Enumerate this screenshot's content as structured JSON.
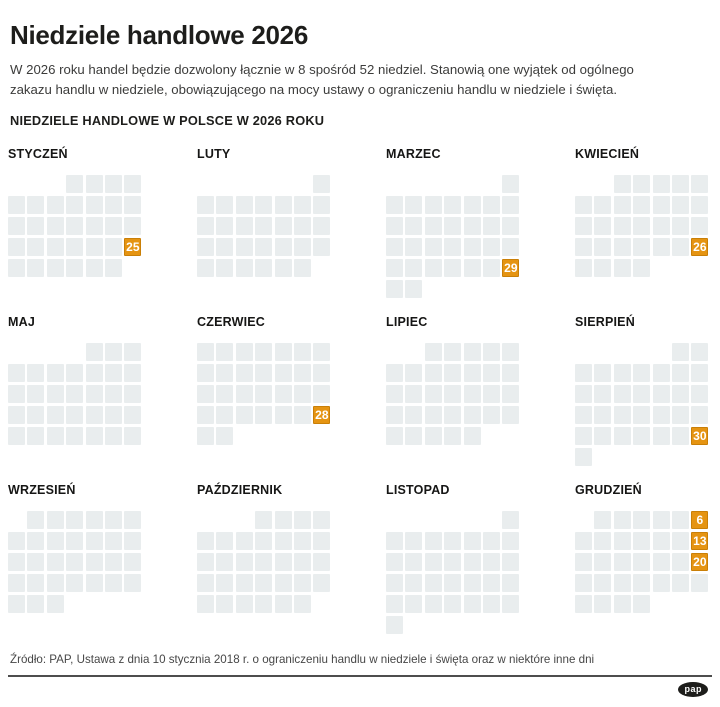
{
  "header": {
    "title": "Niedziele handlowe 2026",
    "intro": "W 2026 roku handel będzie dozwolony łącznie w 8 spośród 52 niedziel. Stanowią one wyjątek od ogólnego zakazu handlu w niedziele, obowiązującego na mocy ustawy o ograniczeniu handlu w niedziele i święta.",
    "section_title": "NIEDZIELE HANDLOWE W POLSCE W 2026 ROKU"
  },
  "colors": {
    "highlight": "#e59412",
    "highlight_border": "#c97f07",
    "day": "#e9edee",
    "text": "#1d1d1b"
  },
  "months": [
    {
      "id": "styczen",
      "name": "STYCZEŃ",
      "rows": [
        [
          "",
          "",
          "",
          ".",
          ".",
          ".",
          "."
        ],
        [
          ".",
          ".",
          ".",
          ".",
          ".",
          ".",
          "."
        ],
        [
          ".",
          ".",
          ".",
          ".",
          ".",
          ".",
          "."
        ],
        [
          ".",
          ".",
          ".",
          ".",
          ".",
          ".",
          "25"
        ],
        [
          ".",
          ".",
          ".",
          ".",
          ".",
          ".",
          ""
        ]
      ]
    },
    {
      "id": "luty",
      "name": "LUTY",
      "rows": [
        [
          "",
          "",
          "",
          "",
          "",
          "",
          "."
        ],
        [
          ".",
          ".",
          ".",
          ".",
          ".",
          ".",
          "."
        ],
        [
          ".",
          ".",
          ".",
          ".",
          ".",
          ".",
          "."
        ],
        [
          ".",
          ".",
          ".",
          ".",
          ".",
          ".",
          "."
        ],
        [
          ".",
          ".",
          ".",
          ".",
          ".",
          ".",
          ""
        ]
      ]
    },
    {
      "id": "marzec",
      "name": "MARZEC",
      "rows": [
        [
          "",
          "",
          "",
          "",
          "",
          "",
          "."
        ],
        [
          ".",
          ".",
          ".",
          ".",
          ".",
          ".",
          "."
        ],
        [
          ".",
          ".",
          ".",
          ".",
          ".",
          ".",
          "."
        ],
        [
          ".",
          ".",
          ".",
          ".",
          ".",
          ".",
          "."
        ],
        [
          ".",
          ".",
          ".",
          ".",
          ".",
          ".",
          "29"
        ],
        [
          ".",
          ".",
          "",
          "",
          "",
          "",
          ""
        ]
      ]
    },
    {
      "id": "kwiecien",
      "name": "KWIECIEŃ",
      "rows": [
        [
          "",
          "",
          ".",
          ".",
          ".",
          ".",
          "."
        ],
        [
          ".",
          ".",
          ".",
          ".",
          ".",
          ".",
          "."
        ],
        [
          ".",
          ".",
          ".",
          ".",
          ".",
          ".",
          "."
        ],
        [
          ".",
          ".",
          ".",
          ".",
          ".",
          ".",
          "26"
        ],
        [
          ".",
          ".",
          ".",
          ".",
          "",
          "",
          ""
        ]
      ]
    },
    {
      "id": "maj",
      "name": "MAJ",
      "rows": [
        [
          "",
          "",
          "",
          "",
          ".",
          ".",
          "."
        ],
        [
          ".",
          ".",
          ".",
          ".",
          ".",
          ".",
          "."
        ],
        [
          ".",
          ".",
          ".",
          ".",
          ".",
          ".",
          "."
        ],
        [
          ".",
          ".",
          ".",
          ".",
          ".",
          ".",
          "."
        ],
        [
          ".",
          ".",
          ".",
          ".",
          ".",
          ".",
          "."
        ]
      ]
    },
    {
      "id": "czerwiec",
      "name": "CZERWIEC",
      "rows": [
        [
          ".",
          ".",
          ".",
          ".",
          ".",
          ".",
          "."
        ],
        [
          ".",
          ".",
          ".",
          ".",
          ".",
          ".",
          "."
        ],
        [
          ".",
          ".",
          ".",
          ".",
          ".",
          ".",
          "."
        ],
        [
          ".",
          ".",
          ".",
          ".",
          ".",
          ".",
          "28"
        ],
        [
          ".",
          ".",
          "",
          "",
          "",
          "",
          ""
        ]
      ]
    },
    {
      "id": "lipiec",
      "name": "LIPIEC",
      "rows": [
        [
          "",
          "",
          ".",
          ".",
          ".",
          ".",
          "."
        ],
        [
          ".",
          ".",
          ".",
          ".",
          ".",
          ".",
          "."
        ],
        [
          ".",
          ".",
          ".",
          ".",
          ".",
          ".",
          "."
        ],
        [
          ".",
          ".",
          ".",
          ".",
          ".",
          ".",
          "."
        ],
        [
          ".",
          ".",
          ".",
          ".",
          ".",
          "",
          ""
        ]
      ]
    },
    {
      "id": "sierpien",
      "name": "SIERPIEŃ",
      "rows": [
        [
          "",
          "",
          "",
          "",
          "",
          ".",
          "."
        ],
        [
          ".",
          ".",
          ".",
          ".",
          ".",
          ".",
          "."
        ],
        [
          ".",
          ".",
          ".",
          ".",
          ".",
          ".",
          "."
        ],
        [
          ".",
          ".",
          ".",
          ".",
          ".",
          ".",
          "."
        ],
        [
          ".",
          ".",
          ".",
          ".",
          ".",
          ".",
          "30"
        ],
        [
          ".",
          "",
          "",
          "",
          "",
          "",
          ""
        ]
      ]
    },
    {
      "id": "wrzesien",
      "name": "WRZESIEŃ",
      "rows": [
        [
          "",
          ".",
          ".",
          ".",
          ".",
          ".",
          "."
        ],
        [
          ".",
          ".",
          ".",
          ".",
          ".",
          ".",
          "."
        ],
        [
          ".",
          ".",
          ".",
          ".",
          ".",
          ".",
          "."
        ],
        [
          ".",
          ".",
          ".",
          ".",
          ".",
          ".",
          "."
        ],
        [
          ".",
          ".",
          ".",
          "",
          "",
          "",
          ""
        ]
      ]
    },
    {
      "id": "pazdziernik",
      "name": "PAŹDZIERNIK",
      "rows": [
        [
          "",
          "",
          "",
          ".",
          ".",
          ".",
          "."
        ],
        [
          ".",
          ".",
          ".",
          ".",
          ".",
          ".",
          "."
        ],
        [
          ".",
          ".",
          ".",
          ".",
          ".",
          ".",
          "."
        ],
        [
          ".",
          ".",
          ".",
          ".",
          ".",
          ".",
          "."
        ],
        [
          ".",
          ".",
          ".",
          ".",
          ".",
          ".",
          ""
        ]
      ]
    },
    {
      "id": "listopad",
      "name": "LISTOPAD",
      "rows": [
        [
          "",
          "",
          "",
          "",
          "",
          "",
          "."
        ],
        [
          ".",
          ".",
          ".",
          ".",
          ".",
          ".",
          "."
        ],
        [
          ".",
          ".",
          ".",
          ".",
          ".",
          ".",
          "."
        ],
        [
          ".",
          ".",
          ".",
          ".",
          ".",
          ".",
          "."
        ],
        [
          ".",
          ".",
          ".",
          ".",
          ".",
          ".",
          "."
        ],
        [
          ".",
          "",
          "",
          "",
          "",
          "",
          ""
        ]
      ]
    },
    {
      "id": "grudzien",
      "name": "GRUDZIEŃ",
      "rows": [
        [
          "",
          ".",
          ".",
          ".",
          ".",
          ".",
          "6"
        ],
        [
          ".",
          ".",
          ".",
          ".",
          ".",
          ".",
          "13"
        ],
        [
          ".",
          ".",
          ".",
          ".",
          ".",
          ".",
          "20"
        ],
        [
          ".",
          ".",
          ".",
          ".",
          ".",
          ".",
          "."
        ],
        [
          ".",
          ".",
          ".",
          ".",
          "",
          "",
          ""
        ]
      ]
    }
  ],
  "footer": {
    "source": "Źródło: PAP, Ustawa z dnia 10 stycznia 2018 r. o ograniczeniu handlu w niedziele i święta oraz w niektóre inne dni",
    "logo": "pap"
  },
  "chart_data": {
    "type": "heatmap",
    "title": "NIEDZIELE HANDLOWE W POLSCE W 2026 ROKU",
    "description": "12 monthly mini-calendars for 2026 (weeks as rows, Monday-first columns, Sunday last); orange cells mark trading Sundays in Poland",
    "categories": [
      "STYCZEŃ",
      "LUTY",
      "MARZEC",
      "KWIECIEŃ",
      "MAJ",
      "CZERWIEC",
      "LIPIEC",
      "SIERPIEŃ",
      "WRZESIEŃ",
      "PAŹDZIERNIK",
      "LISTOPAD",
      "GRUDZIEŃ"
    ],
    "highlighted_days": [
      [
        25
      ],
      [],
      [
        29
      ],
      [
        26
      ],
      [],
      [
        28
      ],
      [],
      [
        30
      ],
      [],
      [],
      [],
      [
        6,
        13,
        20
      ]
    ],
    "total_trading_sundays": 8,
    "total_sundays_in_year": 52,
    "legend_position": "none",
    "grid": false
  }
}
